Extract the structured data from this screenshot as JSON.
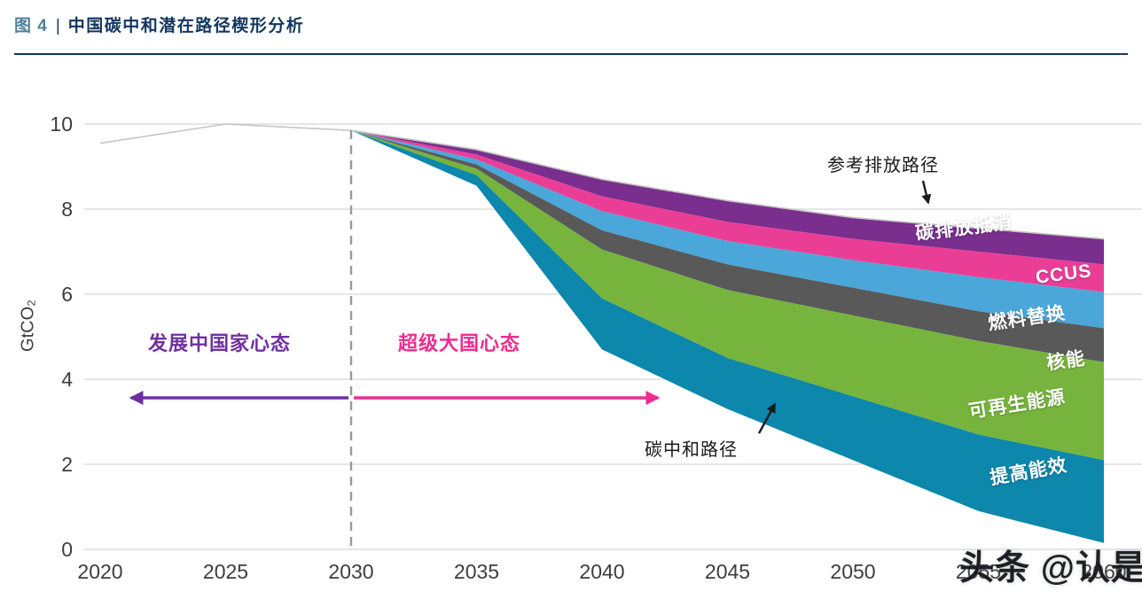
{
  "header": {
    "figure_label": "图 4",
    "separator": "|",
    "title": "中国碳中和潜在路径楔形分析"
  },
  "annotations": {
    "reference_path_label": "参考排放路径",
    "neutrality_path_label": "碳中和路径",
    "left_mindset": "发展中国家心态",
    "right_mindset": "超级大国心态"
  },
  "watermark": {
    "text": "头条 @认是"
  },
  "colors": {
    "accent_navy": "#12365e",
    "figure_label_teal": "#4e8096",
    "purple_arrow": "#7030a0",
    "pink_arrow": "#ed2d91",
    "gridline": "#d8d8d8",
    "dashed_line": "#9a9a9a",
    "reference_line": "#c4c4c4",
    "annotation_arrow": "#1b1b1b"
  },
  "chart_data": {
    "type": "area",
    "title": "中国碳中和潜在路径楔形分析",
    "xlabel": "",
    "ylabel": "GtCO₂",
    "xlim": [
      2020,
      2060
    ],
    "ylim": [
      0,
      10
    ],
    "grid": true,
    "x_years": [
      2020,
      2025,
      2030,
      2035,
      2040,
      2045,
      2050,
      2055,
      2060
    ],
    "x_tick_labels": [
      "2020",
      "2025",
      "2030",
      "2035",
      "2040",
      "2045",
      "2050",
      "2055",
      "2060"
    ],
    "y_ticks": [
      0,
      2,
      4,
      6,
      8,
      10
    ],
    "y_tick_labels": [
      "0",
      "2",
      "4",
      "6",
      "8",
      "10"
    ],
    "milestone_year": 2030,
    "reference_path": {
      "label": "参考排放路径",
      "values": [
        9.55,
        10.0,
        9.85,
        9.4,
        8.7,
        8.2,
        7.8,
        7.55,
        7.3
      ]
    },
    "wedges": [
      {
        "label": "碳排放抵消",
        "color": "#7a2e8e",
        "lower_values": [
          9.55,
          10.0,
          9.85,
          9.28,
          8.3,
          7.7,
          7.3,
          7.0,
          6.7
        ]
      },
      {
        "label": "CCUS",
        "color": "#ea3e96",
        "lower_values": [
          9.55,
          10.0,
          9.85,
          9.17,
          7.95,
          7.25,
          6.8,
          6.4,
          6.05
        ]
      },
      {
        "label": "燃料替换",
        "color": "#4ba7d9",
        "lower_values": [
          9.55,
          10.0,
          9.85,
          9.05,
          7.5,
          6.7,
          6.15,
          5.6,
          5.2
        ]
      },
      {
        "label": "核能",
        "color": "#595959",
        "lower_values": [
          9.55,
          10.0,
          9.85,
          8.95,
          7.05,
          6.1,
          5.5,
          4.9,
          4.4
        ]
      },
      {
        "label": "可再生能源",
        "color": "#77b43d",
        "lower_values": [
          9.55,
          10.0,
          9.85,
          8.8,
          5.9,
          4.5,
          3.6,
          2.7,
          2.1
        ]
      },
      {
        "label": "提高能效",
        "color": "#0d87ab",
        "lower_values": [
          9.55,
          10.0,
          9.85,
          8.55,
          4.7,
          3.3,
          2.1,
          0.9,
          0.15
        ]
      }
    ],
    "neutrality_path": {
      "label": "碳中和路径",
      "values": [
        9.55,
        10.0,
        9.85,
        8.55,
        4.7,
        3.3,
        2.1,
        0.9,
        0.15
      ]
    }
  }
}
